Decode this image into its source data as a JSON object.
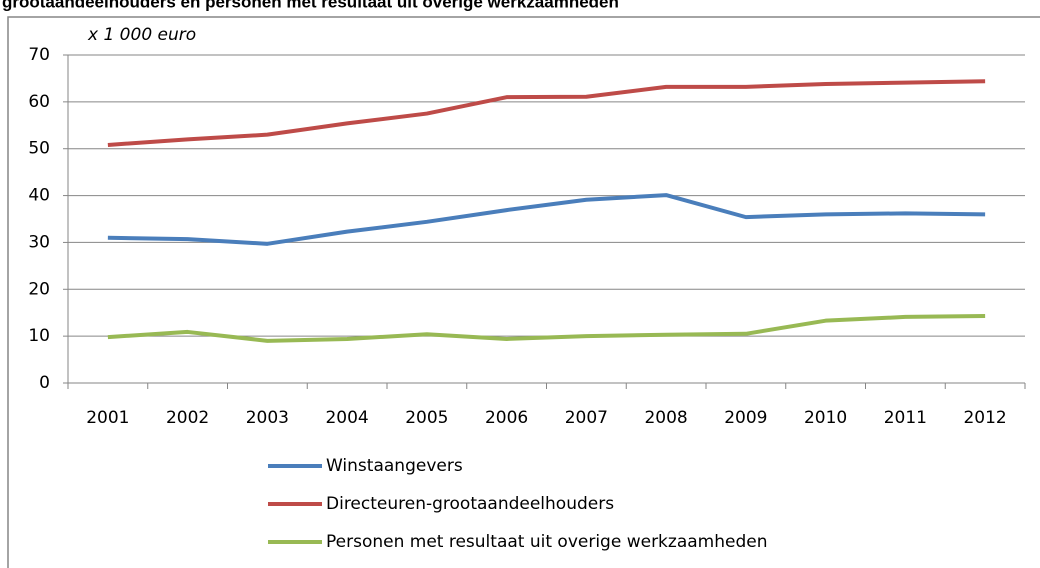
{
  "chart_data": {
    "type": "line",
    "title": "grootaandeelhouders en personen met resultaat uit overige werkzaamheden",
    "y_unit_label": "x 1 000 euro",
    "categories": [
      "2001",
      "2002",
      "2003",
      "2004",
      "2005",
      "2006",
      "2007",
      "2008",
      "2009",
      "2010",
      "2011",
      "2012"
    ],
    "series": [
      {
        "name": "Winstaangevers",
        "color": "#4a7ebb",
        "values": [
          31.0,
          30.7,
          29.7,
          32.3,
          34.4,
          36.9,
          39.1,
          40.1,
          35.4,
          36.0,
          36.2,
          36.0
        ]
      },
      {
        "name": "Directeuren-grootaandeelhouders",
        "color": "#be4b48",
        "values": [
          50.8,
          52.0,
          53.0,
          55.4,
          57.5,
          61.0,
          61.1,
          63.2,
          63.2,
          63.8,
          64.1,
          64.4
        ]
      },
      {
        "name": "Personen met resultaat uit overige werkzaamheden",
        "color": "#98b954",
        "values": [
          9.8,
          10.9,
          9.0,
          9.4,
          10.4,
          9.4,
          10.0,
          10.3,
          10.5,
          13.3,
          14.1,
          14.3
        ]
      }
    ],
    "ylim": [
      0,
      70
    ],
    "yticks": [
      0,
      10,
      20,
      30,
      40,
      50,
      60,
      70
    ],
    "grid": true
  }
}
